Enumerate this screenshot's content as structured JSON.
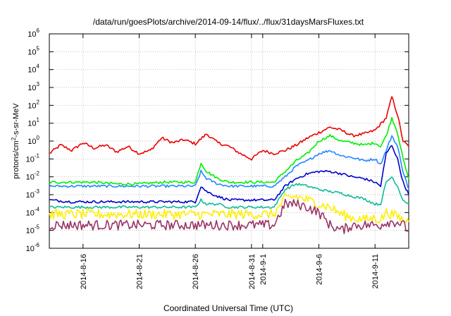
{
  "chart_data": {
    "type": "line",
    "title": "/data/run/goesPlots/archive/2014-09-14/flux/../flux/31daysMarsFluxes.txt",
    "xlabel": "Coordinated Universal Time (UTC)",
    "ylabel": "protons/cm^2-s-sr-MeV",
    "y_scale": "log",
    "ylim": [
      1e-06,
      1000000.0
    ],
    "xlim": [
      "2014-08-13",
      "2014-09-14"
    ],
    "grid": true,
    "y_ticks": [
      {
        "base": "10",
        "exp": "-6"
      },
      {
        "base": "10",
        "exp": "-5"
      },
      {
        "base": "10",
        "exp": "-4"
      },
      {
        "base": "10",
        "exp": "-3"
      },
      {
        "base": "10",
        "exp": "-2"
      },
      {
        "base": "10",
        "exp": "-1"
      },
      {
        "base": "10",
        "exp": "0"
      },
      {
        "base": "10",
        "exp": "1"
      },
      {
        "base": "10",
        "exp": "2"
      },
      {
        "base": "10",
        "exp": "3"
      },
      {
        "base": "10",
        "exp": "4"
      },
      {
        "base": "10",
        "exp": "5"
      },
      {
        "base": "10",
        "exp": "6"
      }
    ],
    "x_ticks": [
      {
        "date": "2014-08-16",
        "label": "2014-8-16"
      },
      {
        "date": "2014-08-21",
        "label": "2014-8-21"
      },
      {
        "date": "2014-08-26",
        "label": "2014-8-26"
      },
      {
        "date": "2014-08-31",
        "label": "2014-8-31"
      },
      {
        "date": "2014-09-01",
        "label": "2014-9-1"
      },
      {
        "date": "2014-09-06",
        "label": "2014-9-6"
      },
      {
        "date": "2014-09-11",
        "label": "2014-9-11"
      }
    ],
    "series": [
      {
        "color": "#ee0000",
        "x": [
          "2014-08-13",
          "2014-08-14",
          "2014-08-15",
          "2014-08-16",
          "2014-08-17",
          "2014-08-18",
          "2014-08-19",
          "2014-08-20",
          "2014-08-21",
          "2014-08-22",
          "2014-08-23",
          "2014-08-24",
          "2014-08-25",
          "2014-08-26",
          "2014-08-27",
          "2014-08-28",
          "2014-08-29",
          "2014-08-30",
          "2014-08-31",
          "2014-09-01",
          "2014-09-02",
          "2014-09-03",
          "2014-09-04",
          "2014-09-05",
          "2014-09-06",
          "2014-09-07",
          "2014-09-08",
          "2014-09-09",
          "2014-09-10",
          "2014-09-11",
          "2014-09-12",
          "2014-09-12T12:00",
          "2014-09-13",
          "2014-09-13T12:00",
          "2014-09-14"
        ],
        "values": [
          0.2,
          0.6,
          0.3,
          0.8,
          0.4,
          0.6,
          0.25,
          0.5,
          0.2,
          0.3,
          1.5,
          0.8,
          1.2,
          0.7,
          2.5,
          0.8,
          0.5,
          0.2,
          0.1,
          0.3,
          0.2,
          0.3,
          0.6,
          1.5,
          3,
          6,
          4,
          2,
          2.5,
          4,
          20,
          300,
          30,
          1,
          0.5
        ]
      },
      {
        "color": "#00ee00",
        "x": [
          "2014-08-13",
          "2014-08-15",
          "2014-08-17",
          "2014-08-19",
          "2014-08-21",
          "2014-08-23",
          "2014-08-25",
          "2014-08-26",
          "2014-08-26T12:00",
          "2014-08-27",
          "2014-08-28",
          "2014-08-29",
          "2014-08-31",
          "2014-09-01",
          "2014-09-02",
          "2014-09-03",
          "2014-09-04",
          "2014-09-05",
          "2014-09-06",
          "2014-09-07",
          "2014-09-08",
          "2014-09-09",
          "2014-09-10",
          "2014-09-11",
          "2014-09-11T12:00",
          "2014-09-12",
          "2014-09-12T12:00",
          "2014-09-13",
          "2014-09-13T12:00",
          "2014-09-14"
        ],
        "values": [
          0.005,
          0.005,
          0.005,
          0.004,
          0.004,
          0.005,
          0.005,
          0.005,
          0.06,
          0.02,
          0.008,
          0.005,
          0.005,
          0.005,
          0.005,
          0.02,
          0.08,
          0.2,
          1,
          2,
          1,
          0.8,
          0.6,
          0.8,
          0.5,
          2,
          20,
          3,
          0.1,
          0.007
        ]
      },
      {
        "color": "#2288ff",
        "x": [
          "2014-08-13",
          "2014-08-15",
          "2014-08-17",
          "2014-08-19",
          "2014-08-21",
          "2014-08-23",
          "2014-08-25",
          "2014-08-26",
          "2014-08-26T12:00",
          "2014-08-27",
          "2014-08-28",
          "2014-08-29",
          "2014-08-31",
          "2014-09-01",
          "2014-09-02",
          "2014-09-03",
          "2014-09-04",
          "2014-09-05",
          "2014-09-06",
          "2014-09-07",
          "2014-09-08",
          "2014-09-09",
          "2014-09-10",
          "2014-09-11",
          "2014-09-11T12:00",
          "2014-09-12",
          "2014-09-12T12:00",
          "2014-09-13",
          "2014-09-13T12:00",
          "2014-09-14"
        ],
        "values": [
          0.003,
          0.003,
          0.003,
          0.003,
          0.003,
          0.003,
          0.003,
          0.003,
          0.02,
          0.008,
          0.004,
          0.003,
          0.003,
          0.003,
          0.003,
          0.01,
          0.04,
          0.08,
          0.2,
          0.3,
          0.15,
          0.12,
          0.08,
          0.1,
          0.05,
          0.3,
          2,
          0.5,
          0.02,
          0.002
        ]
      },
      {
        "color": "#0000cc",
        "x": [
          "2014-08-13",
          "2014-08-15",
          "2014-08-17",
          "2014-08-19",
          "2014-08-21",
          "2014-08-23",
          "2014-08-25",
          "2014-08-26",
          "2014-08-26T12:00",
          "2014-08-27",
          "2014-08-28",
          "2014-08-29",
          "2014-08-31",
          "2014-09-01",
          "2014-09-02",
          "2014-09-03",
          "2014-09-04",
          "2014-09-05",
          "2014-09-06",
          "2014-09-07",
          "2014-09-08",
          "2014-09-09",
          "2014-09-10",
          "2014-09-11",
          "2014-09-11T12:00",
          "2014-09-12",
          "2014-09-12T12:00",
          "2014-09-13",
          "2014-09-13T12:00",
          "2014-09-14"
        ],
        "values": [
          0.0005,
          0.0004,
          0.0004,
          0.0004,
          0.0004,
          0.0004,
          0.0004,
          0.0004,
          0.003,
          0.0015,
          0.0008,
          0.0005,
          0.0005,
          0.0005,
          0.0005,
          0.003,
          0.008,
          0.015,
          0.02,
          0.02,
          0.015,
          0.01,
          0.008,
          0.005,
          0.003,
          0.2,
          0.6,
          0.1,
          0.005,
          0.001
        ]
      },
      {
        "color": "#11bb99",
        "x": [
          "2014-08-13",
          "2014-08-15",
          "2014-08-17",
          "2014-08-19",
          "2014-08-21",
          "2014-08-23",
          "2014-08-25",
          "2014-08-26",
          "2014-08-26T12:00",
          "2014-08-27",
          "2014-08-28",
          "2014-08-29",
          "2014-08-31",
          "2014-09-01",
          "2014-09-02",
          "2014-09-03",
          "2014-09-04",
          "2014-09-05",
          "2014-09-06",
          "2014-09-07",
          "2014-09-08",
          "2014-09-09",
          "2014-09-10",
          "2014-09-11",
          "2014-09-11T12:00",
          "2014-09-12",
          "2014-09-12T12:00",
          "2014-09-13",
          "2014-09-13T12:00",
          "2014-09-14"
        ],
        "values": [
          0.0002,
          0.0002,
          0.0002,
          0.0002,
          0.0002,
          0.0002,
          0.0002,
          0.0002,
          0.0005,
          0.0003,
          0.0003,
          0.0002,
          0.0002,
          0.0002,
          0.0002,
          0.002,
          0.004,
          0.003,
          0.002,
          0.0015,
          0.0012,
          0.0008,
          0.0006,
          0.0003,
          0.0003,
          0.005,
          0.01,
          0.003,
          0.0005,
          0.0003
        ]
      },
      {
        "color": "#ffee00",
        "x": [
          "2014-08-13",
          "2014-08-15",
          "2014-08-17",
          "2014-08-19",
          "2014-08-21",
          "2014-08-23",
          "2014-08-25",
          "2014-08-27",
          "2014-08-29",
          "2014-08-31",
          "2014-09-01",
          "2014-09-02",
          "2014-09-03",
          "2014-09-04",
          "2014-09-05",
          "2014-09-06",
          "2014-09-07",
          "2014-09-08",
          "2014-09-09",
          "2014-09-10",
          "2014-09-11",
          "2014-09-11T12:00",
          "2014-09-12",
          "2014-09-12T12:00",
          "2014-09-13",
          "2014-09-13T12:00",
          "2014-09-14"
        ],
        "values": [
          8e-05,
          8e-05,
          8e-05,
          8e-05,
          8e-05,
          8e-05,
          8e-05,
          8e-05,
          8e-05,
          8e-05,
          8e-05,
          8e-05,
          0.0006,
          0.0008,
          0.0005,
          0.0003,
          0.0002,
          8e-05,
          5e-05,
          4e-05,
          5e-05,
          4e-05,
          0.0001,
          8e-05,
          6e-05,
          4e-05,
          3e-05
        ]
      },
      {
        "color": "#993366",
        "x": [
          "2014-08-13",
          "2014-08-15",
          "2014-08-17",
          "2014-08-19",
          "2014-08-21",
          "2014-08-23",
          "2014-08-25",
          "2014-08-27",
          "2014-08-29",
          "2014-08-31",
          "2014-09-01",
          "2014-09-02",
          "2014-09-03",
          "2014-09-04",
          "2014-09-05",
          "2014-09-06",
          "2014-09-07",
          "2014-09-08",
          "2014-09-09",
          "2014-09-10",
          "2014-09-11",
          "2014-09-11T12:00",
          "2014-09-12",
          "2014-09-12T12:00",
          "2014-09-13",
          "2014-09-13T12:00",
          "2014-09-14"
        ],
        "values": [
          2e-05,
          2e-05,
          2e-05,
          2e-05,
          2e-05,
          2e-05,
          2e-05,
          2e-05,
          2e-05,
          2e-05,
          2e-05,
          2e-05,
          0.0003,
          0.0003,
          0.0002,
          0.0001,
          2e-05,
          1e-05,
          2e-05,
          2e-05,
          2e-05,
          2e-05,
          3e-05,
          3e-05,
          3e-05,
          2e-05,
          1e-05
        ]
      }
    ]
  }
}
